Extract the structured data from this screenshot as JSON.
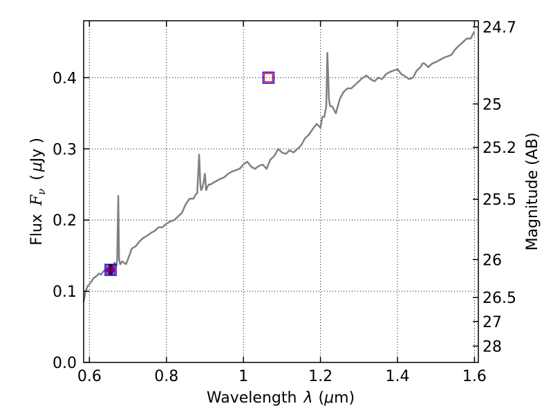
{
  "chart_data": {
    "type": "line",
    "xlabel_prefix": "Wavelength",
    "xlabel_symbol": "λ",
    "xlabel_unit_open": "(",
    "xlabel_unit_mu": "μ",
    "xlabel_unit_rest": "m)",
    "ylabel_prefix": "Flux",
    "ylabel_symbol": "F",
    "ylabel_sub": "ν",
    "ylabel_unit_open": "(",
    "ylabel_unit_mu": "μ",
    "ylabel_unit_rest": "Jy )",
    "y2label": "Magnitude (AB)",
    "xlim": [
      0.585,
      1.61
    ],
    "ylim": [
      0.0,
      0.48
    ],
    "grid": true,
    "x_ticks": [
      {
        "value": 0.6,
        "label": "0.6"
      },
      {
        "value": 0.8,
        "label": "0.8"
      },
      {
        "value": 1.0,
        "label": "1"
      },
      {
        "value": 1.2,
        "label": "1.2"
      },
      {
        "value": 1.4,
        "label": "1.4"
      },
      {
        "value": 1.6,
        "label": "1.6"
      }
    ],
    "y_ticks": [
      {
        "value": 0.0,
        "label": "0.0"
      },
      {
        "value": 0.1,
        "label": "0.1"
      },
      {
        "value": 0.2,
        "label": "0.2"
      },
      {
        "value": 0.3,
        "label": "0.3"
      },
      {
        "value": 0.4,
        "label": "0.4"
      }
    ],
    "y2_ticks": [
      {
        "flux": 0.4713,
        "label": "24.7"
      },
      {
        "flux": 0.3631,
        "label": "25"
      },
      {
        "flux": 0.302,
        "label": "25.2"
      },
      {
        "flux": 0.2291,
        "label": "25.5"
      },
      {
        "flux": 0.1445,
        "label": "26"
      },
      {
        "flux": 0.0912,
        "label": "26.5"
      },
      {
        "flux": 0.0575,
        "label": "27"
      },
      {
        "flux": 0.0229,
        "label": "28"
      }
    ],
    "series": [
      {
        "color": "#808080",
        "x": [
          0.585,
          0.59,
          0.595,
          0.6,
          0.605,
          0.61,
          0.615,
          0.62,
          0.625,
          0.63,
          0.635,
          0.64,
          0.645,
          0.65,
          0.655,
          0.66,
          0.665,
          0.67,
          0.672,
          0.675,
          0.677,
          0.68,
          0.685,
          0.69,
          0.695,
          0.7,
          0.705,
          0.71,
          0.72,
          0.73,
          0.74,
          0.75,
          0.76,
          0.77,
          0.78,
          0.79,
          0.8,
          0.81,
          0.82,
          0.83,
          0.84,
          0.85,
          0.86,
          0.87,
          0.875,
          0.88,
          0.885,
          0.888,
          0.89,
          0.893,
          0.897,
          0.9,
          0.903,
          0.906,
          0.91,
          0.915,
          0.92,
          0.93,
          0.94,
          0.95,
          0.96,
          0.97,
          0.98,
          0.99,
          1.0,
          1.01,
          1.02,
          1.03,
          1.04,
          1.05,
          1.06,
          1.07,
          1.08,
          1.09,
          1.1,
          1.11,
          1.12,
          1.13,
          1.14,
          1.15,
          1.16,
          1.17,
          1.18,
          1.19,
          1.2,
          1.205,
          1.21,
          1.215,
          1.218,
          1.222,
          1.225,
          1.23,
          1.24,
          1.25,
          1.26,
          1.27,
          1.28,
          1.29,
          1.3,
          1.31,
          1.32,
          1.33,
          1.34,
          1.35,
          1.36,
          1.37,
          1.38,
          1.39,
          1.4,
          1.41,
          1.42,
          1.43,
          1.44,
          1.45,
          1.46,
          1.465,
          1.47,
          1.48,
          1.49,
          1.5,
          1.51,
          1.52,
          1.53,
          1.54,
          1.55,
          1.56,
          1.57,
          1.58,
          1.59,
          1.6
        ],
        "y": [
          0.085,
          0.1,
          0.107,
          0.11,
          0.113,
          0.118,
          0.12,
          0.122,
          0.125,
          0.123,
          0.127,
          0.13,
          0.128,
          0.132,
          0.135,
          0.13,
          0.14,
          0.136,
          0.145,
          0.234,
          0.145,
          0.138,
          0.142,
          0.14,
          0.138,
          0.145,
          0.152,
          0.16,
          0.163,
          0.17,
          0.175,
          0.178,
          0.182,
          0.185,
          0.19,
          0.19,
          0.195,
          0.198,
          0.2,
          0.205,
          0.21,
          0.222,
          0.23,
          0.23,
          0.235,
          0.238,
          0.292,
          0.25,
          0.242,
          0.245,
          0.255,
          0.265,
          0.242,
          0.246,
          0.25,
          0.25,
          0.252,
          0.255,
          0.258,
          0.26,
          0.265,
          0.268,
          0.27,
          0.272,
          0.278,
          0.282,
          0.275,
          0.272,
          0.276,
          0.278,
          0.272,
          0.285,
          0.29,
          0.3,
          0.295,
          0.293,
          0.298,
          0.295,
          0.3,
          0.305,
          0.315,
          0.32,
          0.328,
          0.335,
          0.33,
          0.345,
          0.345,
          0.36,
          0.435,
          0.37,
          0.36,
          0.36,
          0.35,
          0.37,
          0.38,
          0.385,
          0.385,
          0.39,
          0.395,
          0.4,
          0.403,
          0.398,
          0.395,
          0.4,
          0.398,
          0.405,
          0.408,
          0.41,
          0.412,
          0.405,
          0.402,
          0.398,
          0.4,
          0.41,
          0.415,
          0.42,
          0.42,
          0.415,
          0.42,
          0.422,
          0.425,
          0.428,
          0.43,
          0.432,
          0.44,
          0.445,
          0.45,
          0.455,
          0.455,
          0.465
        ]
      }
    ],
    "markers": [
      {
        "kind": "square",
        "x": 0.655,
        "y": 0.13,
        "edge": "#0000ff"
      },
      {
        "kind": "square",
        "x": 0.655,
        "y": 0.13,
        "edge": "#800080"
      },
      {
        "kind": "circle",
        "x": 0.655,
        "y": 0.13,
        "fill": "#800080"
      },
      {
        "kind": "errorbar",
        "x": 0.655,
        "y": 0.13,
        "ylow": 0.124,
        "yhigh": 0.137,
        "color": "#000000"
      },
      {
        "kind": "square",
        "x": 1.065,
        "y": 0.4,
        "edge": "#0000ff"
      },
      {
        "kind": "square",
        "x": 1.065,
        "y": 0.4,
        "edge": "#ff0000"
      }
    ]
  }
}
